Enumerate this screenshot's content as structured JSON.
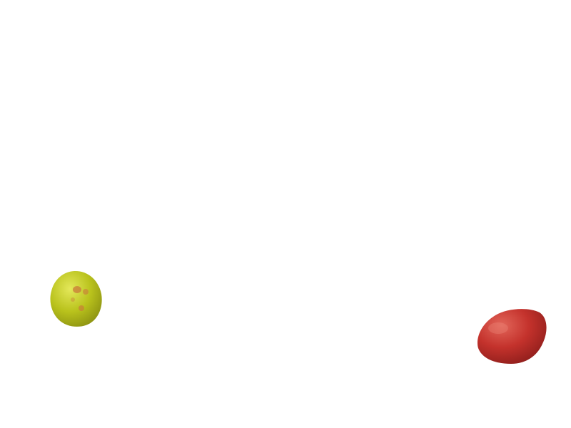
{
  "scene": {
    "background_color": "#ffffff",
    "objects": [
      {
        "name": "yellow-green-fruit",
        "colors": {
          "base": "#b9c21c",
          "highlight": "#e4e85a",
          "shadow": "#8c9212",
          "spots": "#c9793a"
        }
      },
      {
        "name": "red-fruit",
        "colors": {
          "base": "#c4322c",
          "highlight": "#e2665a",
          "shadow": "#8a1c1a"
        }
      }
    ]
  }
}
